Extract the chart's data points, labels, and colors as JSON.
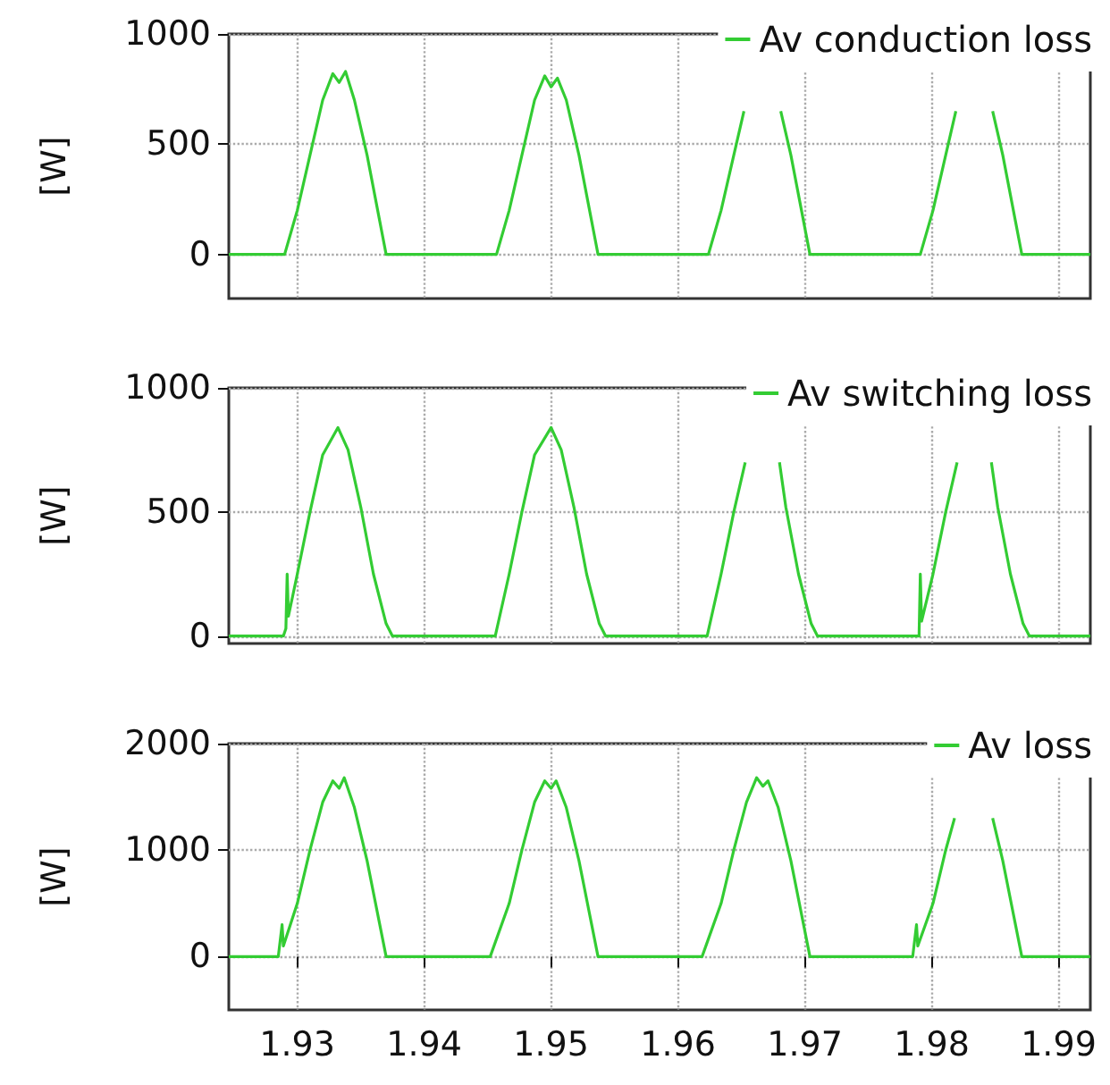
{
  "chart_data": [
    {
      "type": "line",
      "ylabel": "[W]",
      "xlim": [
        1.9246,
        1.9925
      ],
      "xticks": [
        1.93,
        1.94,
        1.95,
        1.96,
        1.97,
        1.98,
        1.99
      ],
      "ylim": [
        -200,
        1000
      ],
      "yticks": [
        0,
        500,
        1000
      ],
      "grid": true,
      "legend": "top right",
      "marker": "none",
      "tick_labels": "y",
      "series": [
        {
          "name": "Av conduction loss",
          "color": "#33cc33",
          "x": [
            1.9246,
            1.929,
            1.93,
            1.931,
            1.932,
            1.9328,
            1.9333,
            1.9338,
            1.9345,
            1.9355,
            1.9365,
            1.937,
            1.9457,
            1.9467,
            1.9477,
            1.9487,
            1.9495,
            1.95,
            1.9505,
            1.9512,
            1.9522,
            1.9532,
            1.9537,
            1.9624,
            1.9634,
            1.9644,
            1.9652,
            1.9655,
            1.9678,
            1.9681,
            1.9689,
            1.9699,
            1.9704,
            1.9791,
            1.9801,
            1.9811,
            1.9819,
            1.9822,
            1.9845,
            1.9848,
            1.9856,
            1.9866,
            1.9871,
            1.9925
          ],
          "values": [
            0,
            0,
            200,
            450,
            700,
            820,
            780,
            830,
            700,
            450,
            150,
            0,
            0,
            200,
            450,
            700,
            810,
            760,
            800,
            700,
            450,
            150,
            0,
            0,
            200,
            450,
            650,
            null,
            null,
            650,
            450,
            150,
            0,
            0,
            200,
            450,
            650,
            null,
            null,
            650,
            450,
            150,
            0,
            0
          ]
        }
      ]
    },
    {
      "type": "line",
      "ylabel": "[W]",
      "xlim": [
        1.9246,
        1.9925
      ],
      "xticks": [
        1.93,
        1.94,
        1.95,
        1.96,
        1.97,
        1.98,
        1.99
      ],
      "ylim": [
        -30,
        1000
      ],
      "yticks": [
        0,
        500,
        1000
      ],
      "grid": true,
      "legend": "top right",
      "marker": "none",
      "tick_labels": "y",
      "series": [
        {
          "name": "Av switching loss",
          "color": "#33cc33",
          "x": [
            1.9246,
            1.9289,
            1.9291,
            1.9292,
            1.9293,
            1.93,
            1.931,
            1.932,
            1.9332,
            1.934,
            1.935,
            1.936,
            1.937,
            1.9375,
            1.9456,
            1.9467,
            1.9477,
            1.9487,
            1.95,
            1.9508,
            1.9518,
            1.9528,
            1.9538,
            1.9543,
            1.9623,
            1.9634,
            1.9644,
            1.9653,
            1.9656,
            1.9677,
            1.968,
            1.9685,
            1.9695,
            1.9705,
            1.971,
            1.979,
            1.9791,
            1.9792,
            1.9801,
            1.9811,
            1.982,
            1.9823,
            1.9844,
            1.9847,
            1.9852,
            1.9862,
            1.9872,
            1.9877,
            1.9925
          ],
          "values": [
            0,
            0,
            30,
            250,
            80,
            250,
            500,
            730,
            840,
            750,
            520,
            250,
            50,
            0,
            0,
            250,
            500,
            730,
            840,
            750,
            520,
            250,
            50,
            0,
            0,
            250,
            500,
            700,
            null,
            null,
            700,
            520,
            250,
            50,
            0,
            0,
            250,
            60,
            250,
            500,
            700,
            null,
            null,
            700,
            520,
            250,
            50,
            0,
            0
          ]
        }
      ]
    },
    {
      "type": "line",
      "ylabel": "[W]",
      "xlim": [
        1.9246,
        1.9925
      ],
      "xticks": [
        1.93,
        1.94,
        1.95,
        1.96,
        1.97,
        1.98,
        1.99
      ],
      "ylim": [
        -500,
        2000
      ],
      "yticks": [
        0,
        1000,
        2000
      ],
      "grid": true,
      "legend": "top right",
      "marker": "none",
      "series": [
        {
          "name": "Av loss",
          "color": "#33cc33",
          "x": [
            1.9246,
            1.9285,
            1.9288,
            1.9289,
            1.93,
            1.931,
            1.932,
            1.9328,
            1.9333,
            1.9337,
            1.9345,
            1.9355,
            1.9365,
            1.937,
            1.9452,
            1.9467,
            1.9477,
            1.9487,
            1.9495,
            1.95,
            1.9504,
            1.9512,
            1.9522,
            1.9532,
            1.9537,
            1.9619,
            1.9634,
            1.9644,
            1.9654,
            1.9662,
            1.9667,
            1.9671,
            1.9679,
            1.9689,
            1.9699,
            1.9704,
            1.9785,
            1.9788,
            1.9789,
            1.9801,
            1.9811,
            1.9818,
            1.9821,
            1.9845,
            1.9848,
            1.9856,
            1.9866,
            1.9871,
            1.9925
          ],
          "values": [
            0,
            0,
            300,
            100,
            500,
            1000,
            1450,
            1650,
            1580,
            1680,
            1400,
            900,
            300,
            0,
            0,
            500,
            1000,
            1450,
            1650,
            1580,
            1650,
            1400,
            900,
            300,
            0,
            0,
            500,
            1000,
            1450,
            1680,
            1600,
            1650,
            1400,
            900,
            300,
            0,
            0,
            300,
            100,
            500,
            1000,
            1300,
            null,
            null,
            1300,
            900,
            300,
            0,
            0
          ]
        }
      ]
    }
  ]
}
